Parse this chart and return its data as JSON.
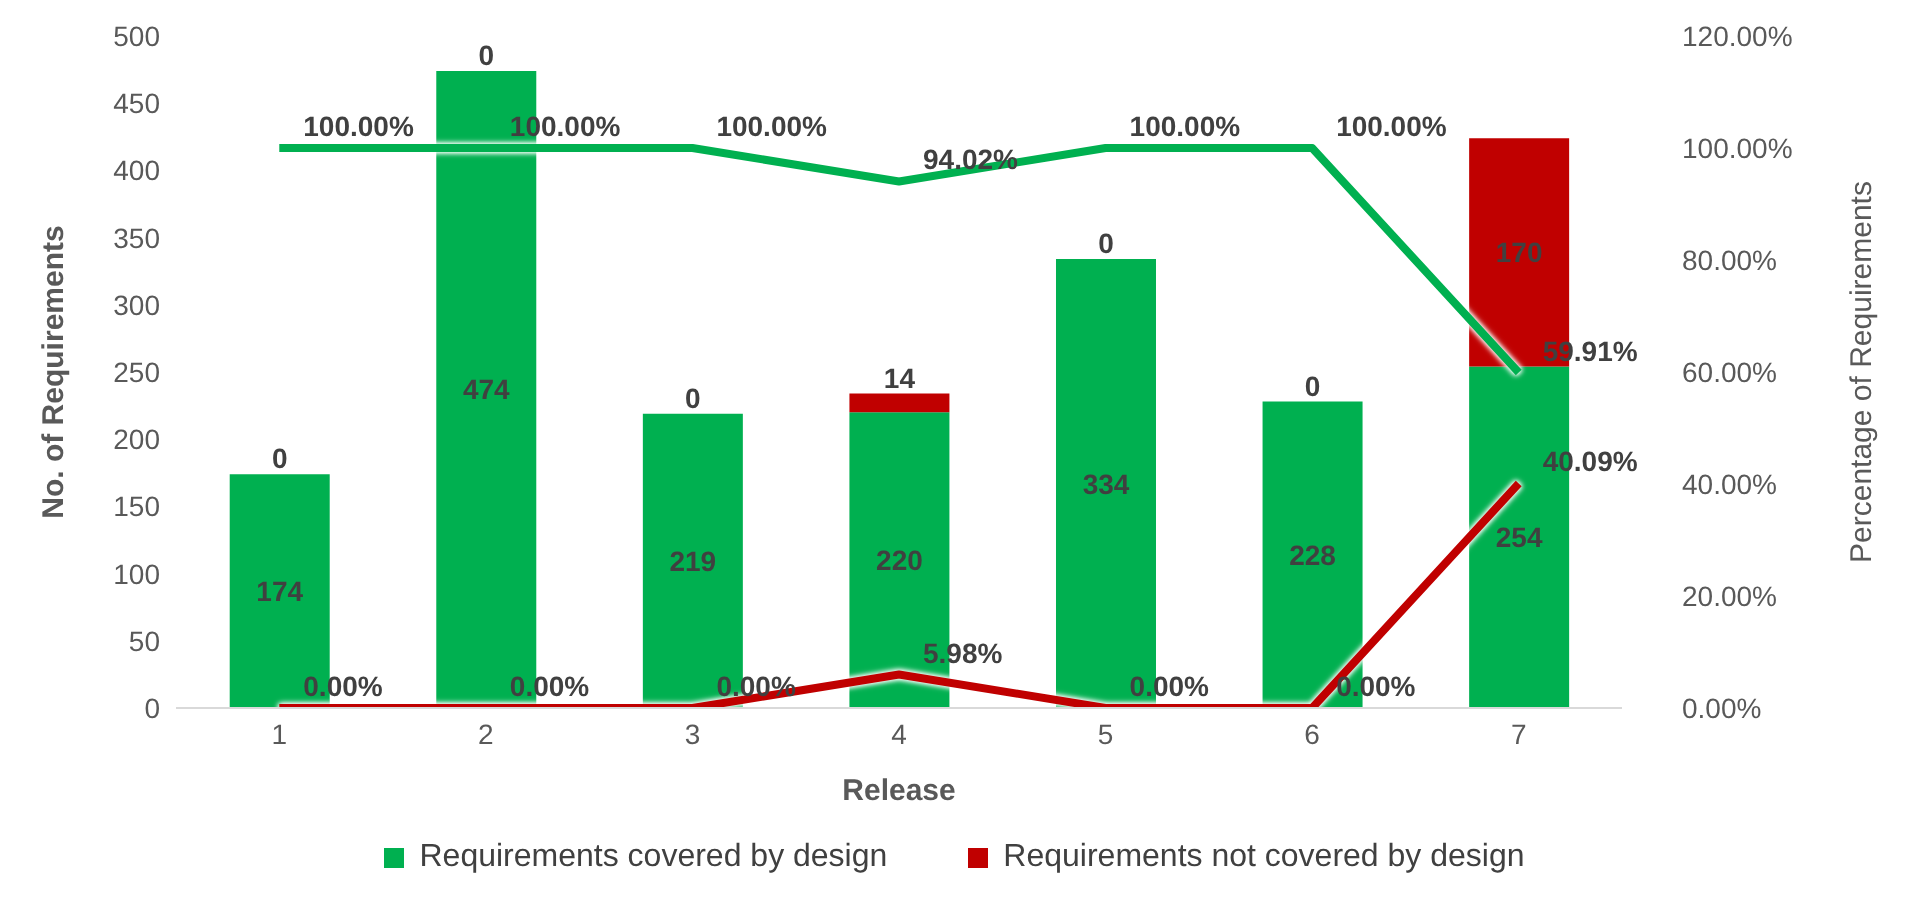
{
  "chart_data": {
    "type": "bar",
    "stacked": true,
    "xlabel": "Release",
    "ylabel": "No. of Requirements",
    "y2label": "Percentage of Requirements",
    "categories": [
      "1",
      "2",
      "3",
      "4",
      "5",
      "6",
      "7"
    ],
    "series": [
      {
        "name": "Requirements covered by design",
        "color": "#00b050",
        "values": [
          174,
          474,
          219,
          220,
          334,
          228,
          254
        ]
      },
      {
        "name": "Requirements not covered by design",
        "color": "#c00000",
        "values": [
          0,
          0,
          0,
          14,
          0,
          0,
          170
        ]
      },
      {
        "type": "line",
        "axis": "y2",
        "color": "#00b050",
        "values": [
          100,
          100,
          100,
          94.02,
          100,
          100,
          59.91
        ],
        "value_labels": [
          "100.00%",
          "100.00%",
          "100.00%",
          "94.02%",
          "100.00%",
          "100.00%",
          "59.91%"
        ]
      },
      {
        "type": "line",
        "axis": "y2",
        "color": "#c00000",
        "values": [
          0,
          0,
          0,
          5.98,
          0,
          0,
          40.09
        ],
        "value_labels": [
          "0.00%",
          "0.00%",
          "0.00%",
          "5.98%",
          "0.00%",
          "0.00%",
          "40.09%"
        ]
      }
    ],
    "ylim": [
      0,
      500
    ],
    "yticks": [
      0,
      50,
      100,
      150,
      200,
      250,
      300,
      350,
      400,
      450,
      500
    ],
    "y2lim": [
      0,
      120
    ],
    "y2ticks": [
      {
        "value": 0,
        "label": "0.00%"
      },
      {
        "value": 20,
        "label": "20.00%"
      },
      {
        "value": 40,
        "label": "40.00%"
      },
      {
        "value": 60,
        "label": "60.00%"
      },
      {
        "value": 80,
        "label": "80.00%"
      },
      {
        "value": 100,
        "label": "100.00%"
      },
      {
        "value": 120,
        "label": "120.00%"
      }
    ],
    "data_labels": true,
    "marker": "none",
    "line_style": "solid",
    "legend": "bottom"
  }
}
